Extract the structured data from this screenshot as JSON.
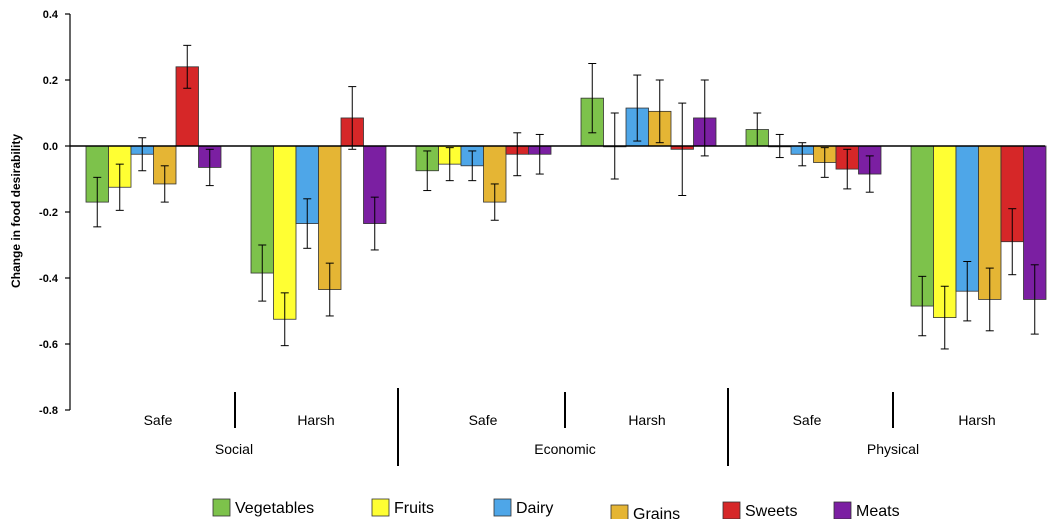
{
  "chart_data": {
    "type": "bar",
    "title": "",
    "xlabel": "",
    "ylabel": "Change in food desirability",
    "ylim": [
      -0.8,
      0.4
    ],
    "y_ticks": [
      "0.4",
      "0.2",
      "0.0",
      "-0.2",
      "-0.4",
      "-0.6",
      "-0.8"
    ],
    "y_tick_values": [
      0.4,
      0.2,
      0.0,
      -0.2,
      -0.4,
      -0.6,
      -0.8
    ],
    "grid": false,
    "legend_position": "bottom",
    "domains": [
      "Social",
      "Economic",
      "Physical"
    ],
    "conditions": [
      "Safe",
      "Harsh"
    ],
    "categories": [
      "Social Safe",
      "Social Harsh",
      "Economic Safe",
      "Economic Harsh",
      "Physical Safe",
      "Physical Harsh"
    ],
    "series": [
      {
        "name": "Vegetables",
        "color": "#7dc24b",
        "values": [
          -0.17,
          -0.385,
          -0.075,
          0.145,
          0.05,
          -0.485
        ],
        "errors": [
          0.075,
          0.085,
          0.06,
          0.105,
          0.05,
          0.09
        ]
      },
      {
        "name": "Fruits",
        "color": "#ffff33",
        "values": [
          -0.125,
          -0.525,
          -0.055,
          0.0,
          0.0,
          -0.52
        ],
        "errors": [
          0.07,
          0.08,
          0.05,
          0.1,
          0.035,
          0.095
        ]
      },
      {
        "name": "Dairy",
        "color": "#4ea6e8",
        "values": [
          -0.025,
          -0.235,
          -0.06,
          0.115,
          -0.025,
          -0.44
        ],
        "errors": [
          0.05,
          0.075,
          0.045,
          0.1,
          0.035,
          0.09
        ]
      },
      {
        "name": "Grains",
        "color": "#e5b534",
        "values": [
          -0.115,
          -0.435,
          -0.17,
          0.105,
          -0.05,
          -0.465
        ],
        "errors": [
          0.055,
          0.08,
          0.055,
          0.095,
          0.045,
          0.095
        ]
      },
      {
        "name": "Sweets",
        "color": "#d62728",
        "values": [
          0.24,
          0.085,
          -0.025,
          -0.01,
          -0.07,
          -0.29
        ],
        "errors": [
          0.065,
          0.095,
          0.065,
          0.14,
          0.06,
          0.1
        ]
      },
      {
        "name": "Meats",
        "color": "#7b1fa2",
        "values": [
          -0.065,
          -0.235,
          -0.025,
          0.085,
          -0.085,
          -0.465
        ],
        "errors": [
          0.055,
          0.08,
          0.06,
          0.115,
          0.055,
          0.105
        ]
      }
    ]
  }
}
